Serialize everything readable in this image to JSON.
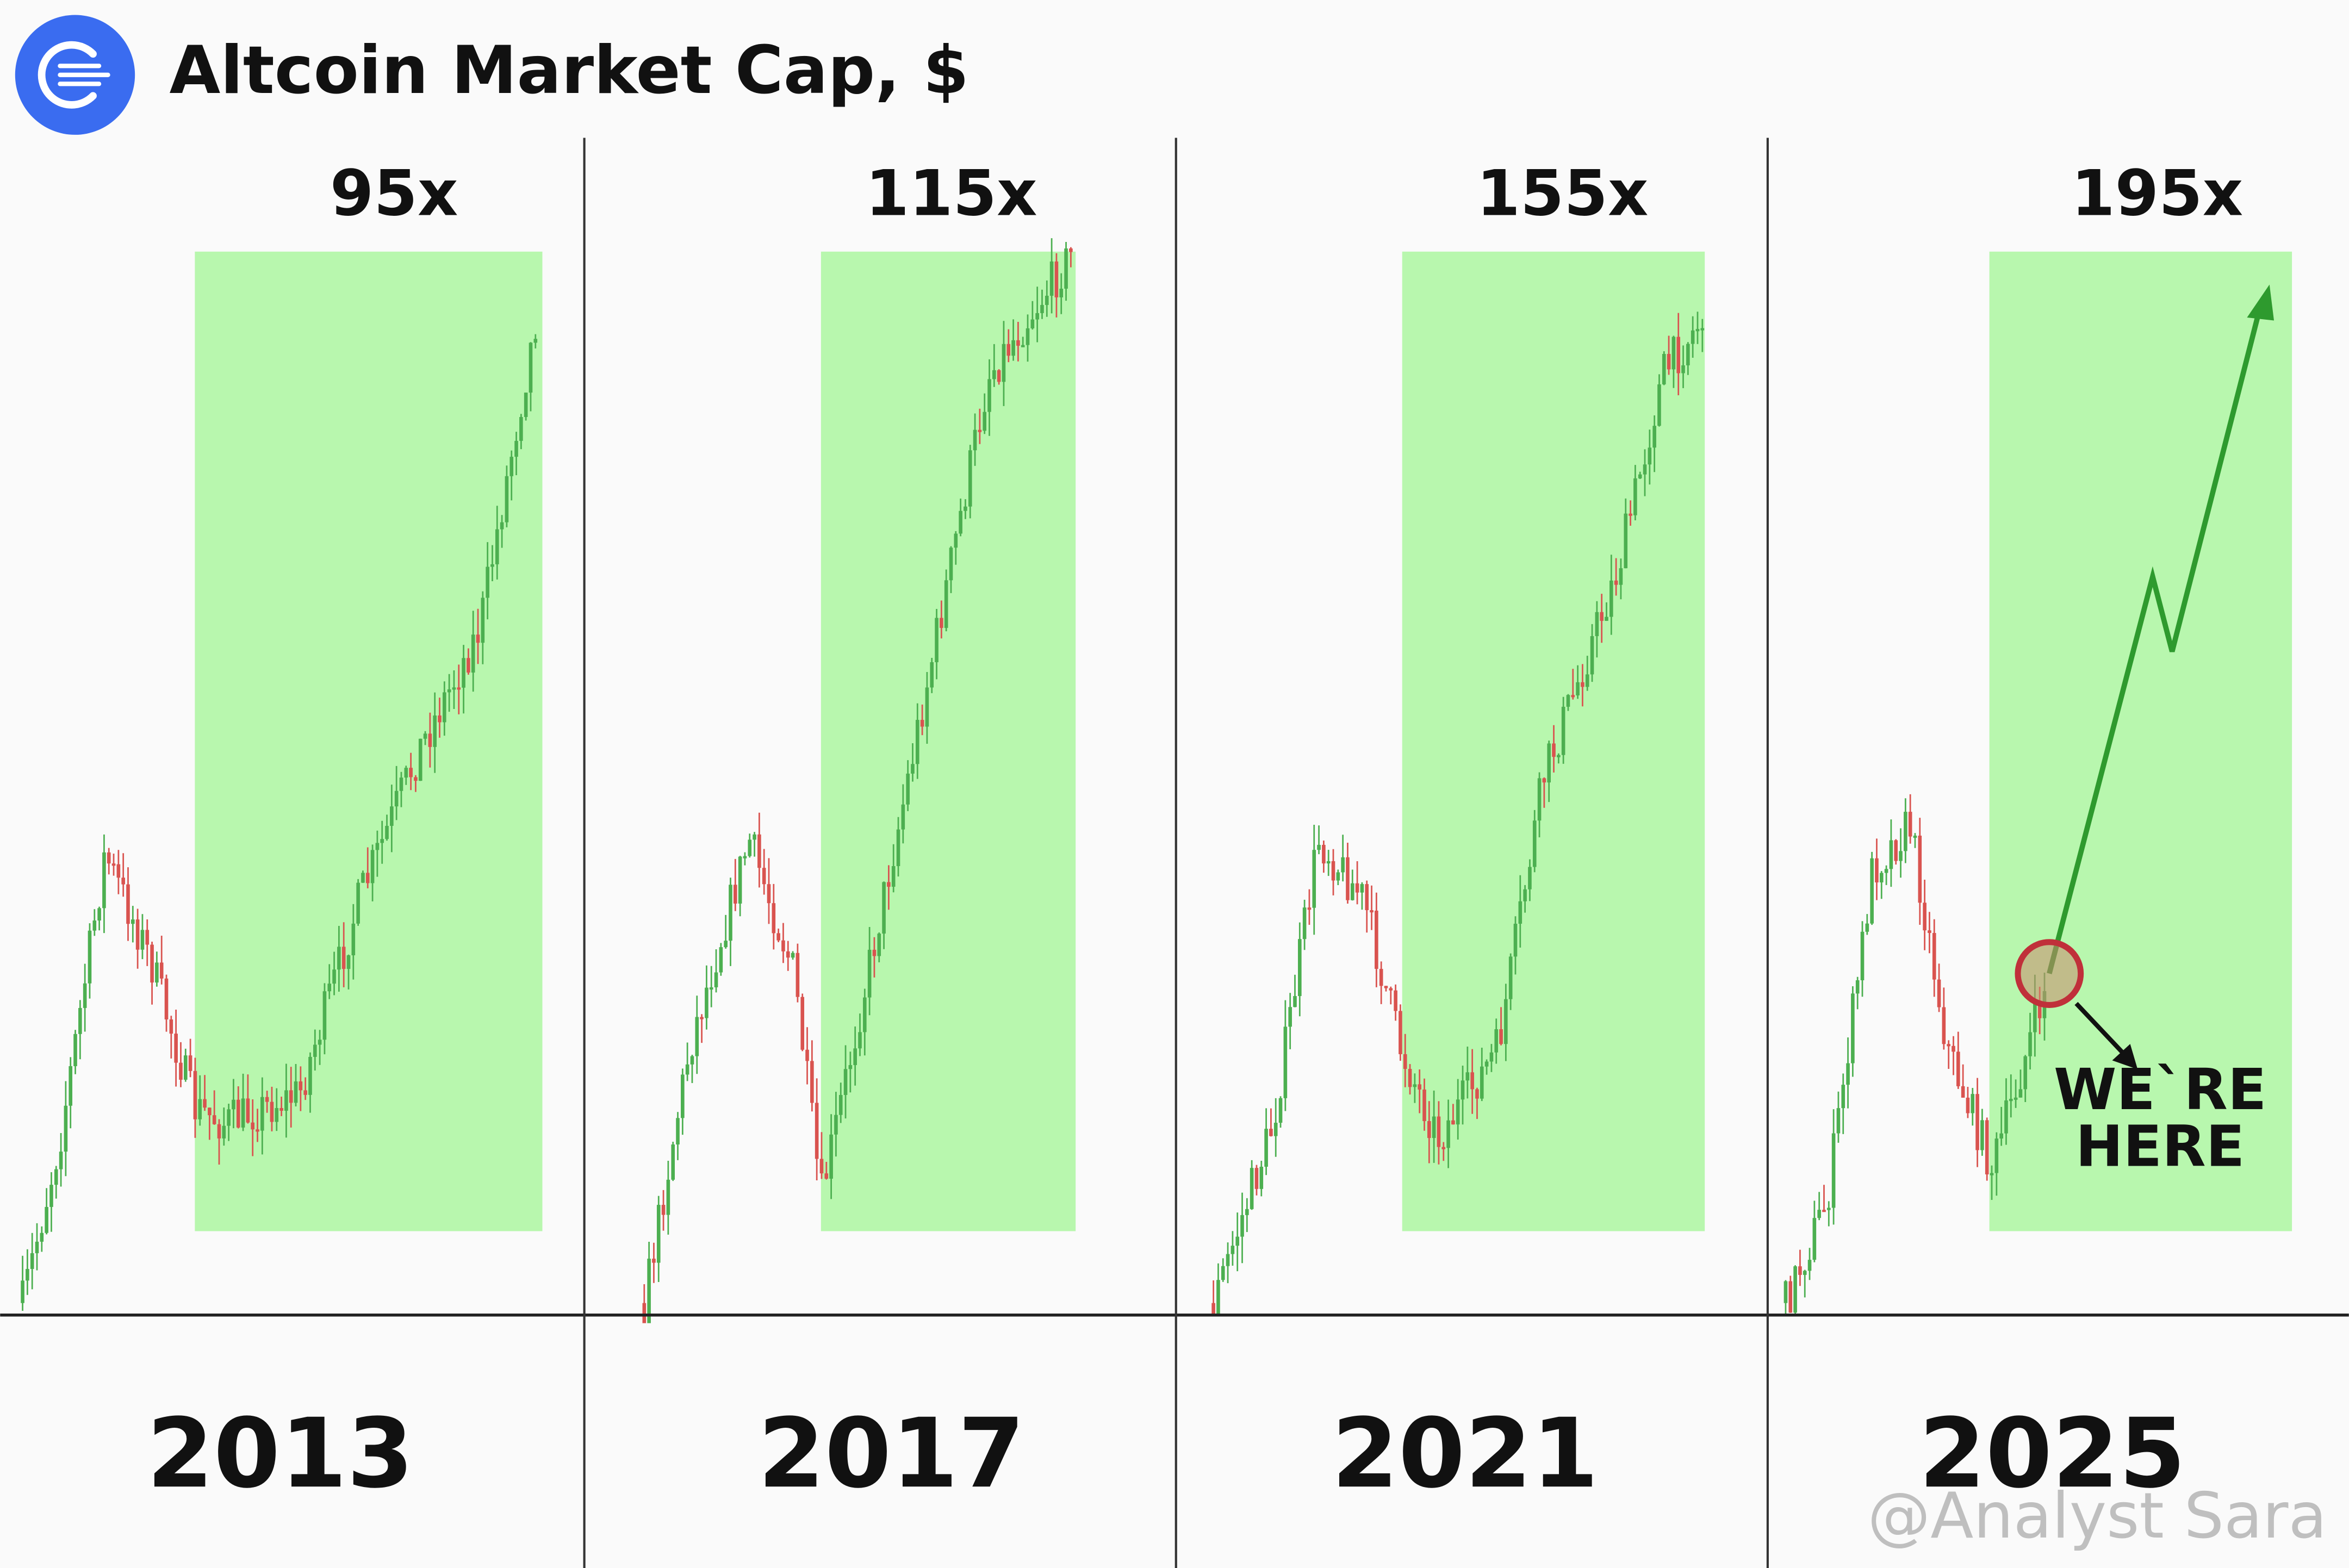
{
  "header": {
    "title": "Altcoin Market Cap, $"
  },
  "panels": [
    {
      "multiplier": "95x",
      "year": "2013"
    },
    {
      "multiplier": "115x",
      "year": "2017"
    },
    {
      "multiplier": "155x",
      "year": "2021"
    },
    {
      "multiplier": "195x",
      "year": "2025"
    }
  ],
  "annotation": {
    "line1": "WE`RE",
    "line2": "HERE"
  },
  "watermark": "@Analyst Sara"
}
